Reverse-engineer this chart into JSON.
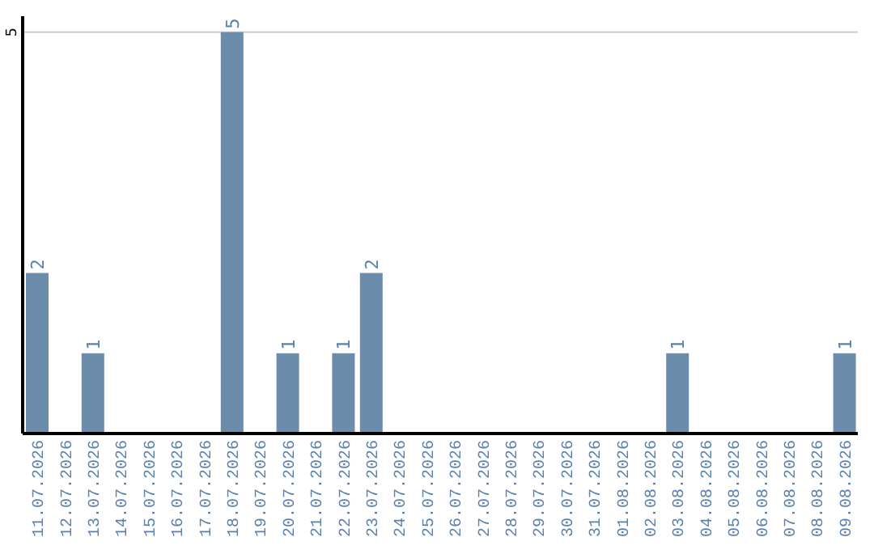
{
  "chart_data": {
    "type": "bar",
    "categories": [
      "11.07.2026",
      "12.07.2026",
      "13.07.2026",
      "14.07.2026",
      "15.07.2026",
      "16.07.2026",
      "17.07.2026",
      "18.07.2026",
      "19.07.2026",
      "20.07.2026",
      "21.07.2026",
      "22.07.2026",
      "23.07.2026",
      "24.07.2026",
      "25.07.2026",
      "26.07.2026",
      "27.07.2026",
      "28.07.2026",
      "29.07.2026",
      "30.07.2026",
      "31.07.2026",
      "01.08.2026",
      "02.08.2026",
      "03.08.2026",
      "04.08.2026",
      "05.08.2026",
      "06.08.2026",
      "07.08.2026",
      "08.08.2026",
      "09.08.2026"
    ],
    "values": [
      2,
      0,
      1,
      0,
      0,
      0,
      0,
      5,
      0,
      1,
      0,
      1,
      2,
      0,
      0,
      0,
      0,
      0,
      0,
      0,
      0,
      0,
      0,
      1,
      0,
      0,
      0,
      0,
      0,
      1
    ],
    "value_labels": [
      "2",
      null,
      "1",
      null,
      null,
      null,
      null,
      "5",
      null,
      "1",
      null,
      "1",
      "2",
      null,
      null,
      null,
      null,
      null,
      null,
      null,
      null,
      null,
      null,
      "1",
      null,
      null,
      null,
      null,
      null,
      "1"
    ],
    "color": "#6b8cab",
    "ylim": [
      0,
      5.2
    ],
    "yticks": [
      5
    ],
    "grid": "y"
  }
}
